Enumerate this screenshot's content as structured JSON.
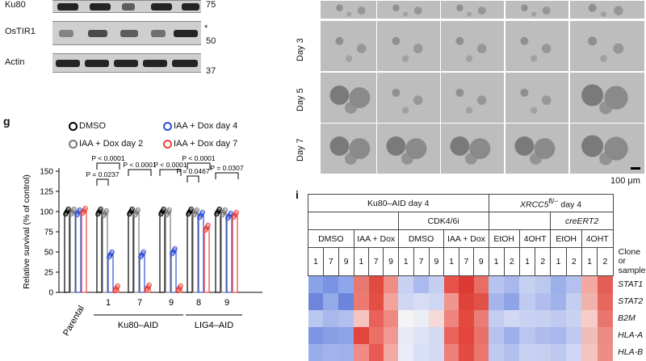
{
  "blot": {
    "rows": [
      {
        "label": "Ku80",
        "marker": "75",
        "annotation": ""
      },
      {
        "label": "OsTIR1",
        "marker": "50",
        "annotation": "*"
      },
      {
        "label": "Actin",
        "marker": "37",
        "annotation": ""
      }
    ]
  },
  "micrographs": {
    "rows": [
      "Day 3",
      "Day 5",
      "Day 7"
    ],
    "scale_bar": "100 μm"
  },
  "panel_g": {
    "letter": "g",
    "legend": [
      {
        "label": "DMSO",
        "color": "#000000"
      },
      {
        "label": "IAA + Dox day 2",
        "color": "#777777"
      },
      {
        "label": "IAA + Dox day 4",
        "color": "#2e4fd6"
      },
      {
        "label": "IAA + Dox day 7",
        "color": "#e8433a"
      }
    ],
    "pvalues": [
      "P < 0.0001",
      "P = 0.0237",
      "P < 0.0001",
      "P < 0.0001",
      "P < 0.0001",
      "P = 0.0467",
      "P = 0.0307"
    ],
    "group_labels": [
      "Ku80–AID",
      "LIG4–AID"
    ]
  },
  "chart_data": {
    "type": "bar",
    "ylabel": "Relative survival (% of control)",
    "ylim": [
      0,
      150
    ],
    "yticks": [
      0,
      25,
      50,
      75,
      100,
      125,
      150
    ],
    "categories": [
      "Parental",
      "1",
      "7",
      "9",
      "8",
      "9"
    ],
    "series": [
      {
        "name": "DMSO",
        "values": [
          100,
          100,
          100,
          100,
          100,
          100
        ]
      },
      {
        "name": "IAA + Dox day 2",
        "values": [
          100,
          98,
          99,
          99,
          99,
          99
        ]
      },
      {
        "name": "IAA + Dox day 4",
        "values": [
          99,
          47,
          47,
          51,
          96,
          95
        ]
      },
      {
        "name": "IAA + Dox day 7",
        "values": [
          101,
          5,
          6,
          5,
          80,
          96
        ]
      }
    ]
  },
  "panel_i": {
    "letter": "i",
    "header1": [
      "Ku80–AID day 4",
      "XRCC5",
      "fl/−",
      " day 4"
    ],
    "header2_left": "CDK4/6i",
    "header2_right": "creERT2",
    "header3": [
      "DMSO",
      "IAA + Dox",
      "DMSO",
      "IAA + Dox",
      "EtOH",
      "4OHT",
      "EtOH",
      "4OHT"
    ],
    "clones": [
      "1",
      "7",
      "9",
      "1",
      "7",
      "9",
      "1",
      "7",
      "9",
      "1",
      "7",
      "9",
      "1",
      "2",
      "1",
      "2",
      "1",
      "2",
      "1",
      "2"
    ],
    "clone_label_1": "Clone or",
    "clone_label_2": "sample",
    "genes": [
      "STAT1",
      "STAT2",
      "B2M",
      "HLA-A",
      "HLA-B"
    ],
    "heatmap": [
      [
        "#8aa2e8",
        "#7a93e2",
        "#8fa7ea",
        "#e87970",
        "#e04a40",
        "#f08e86",
        "#c9d1f2",
        "#aab9ee",
        "#c5cdf1",
        "#e9524a",
        "#dc3a33",
        "#e86e65",
        "#b7c4ef",
        "#a8b7ec",
        "#c6d0f1",
        "#bdc8ef",
        "#9cb0ea",
        "#b4c1ee",
        "#f3a9a2",
        "#e45e55"
      ],
      [
        "#6d86dc",
        "#95aae9",
        "#6c85dc",
        "#ec7a72",
        "#e34e45",
        "#f4a39c",
        "#cfd6f3",
        "#d8ddf4",
        "#cfd6f3",
        "#f0968f",
        "#df433b",
        "#e15148",
        "#a6b6ec",
        "#8ea4e7",
        "#c1caf0",
        "#b0bdee",
        "#a0b2ea",
        "#c5cef1",
        "#f2b2ac",
        "#e7675f"
      ],
      [
        "#b9c6ef",
        "#a9b8ec",
        "#b1bfee",
        "#f7c4bf",
        "#e96158",
        "#ee8980",
        "#f4f4f4",
        "#eceef6",
        "#f5d9d6",
        "#ee847c",
        "#e3493f",
        "#e97d75",
        "#c3cdf1",
        "#d2d8f3",
        "#c9d2f2",
        "#c7d0f1",
        "#bfcaf0",
        "#cad2f2",
        "#f7cdc9",
        "#e9766e"
      ],
      [
        "#7d95e3",
        "#889fe6",
        "#8fa4e7",
        "#e2453c",
        "#ea7168",
        "#f09891",
        "#e8ebf6",
        "#dde2f5",
        "#d3d9f3",
        "#e8645b",
        "#e2453c",
        "#ea7169",
        "#b6c3ef",
        "#9db0ea",
        "#bac6ef",
        "#aebcec",
        "#a9b8ec",
        "#bfcaf0",
        "#f1bdb8",
        "#ea8b84"
      ],
      [
        "#98aeea",
        "#a1b3ea",
        "#9fb1ea",
        "#f08c85",
        "#e75a51",
        "#f3aaa4",
        "#e9ecf6",
        "#d9dff4",
        "#d4daf3",
        "#ec7f77",
        "#e24c43",
        "#ea766e",
        "#c0caf0",
        "#b3c0ee",
        "#c9d1f2",
        "#c7cff1",
        "#bdc8ef",
        "#cfd6f3",
        "#f4c4bf",
        "#ec8e87"
      ]
    ]
  }
}
